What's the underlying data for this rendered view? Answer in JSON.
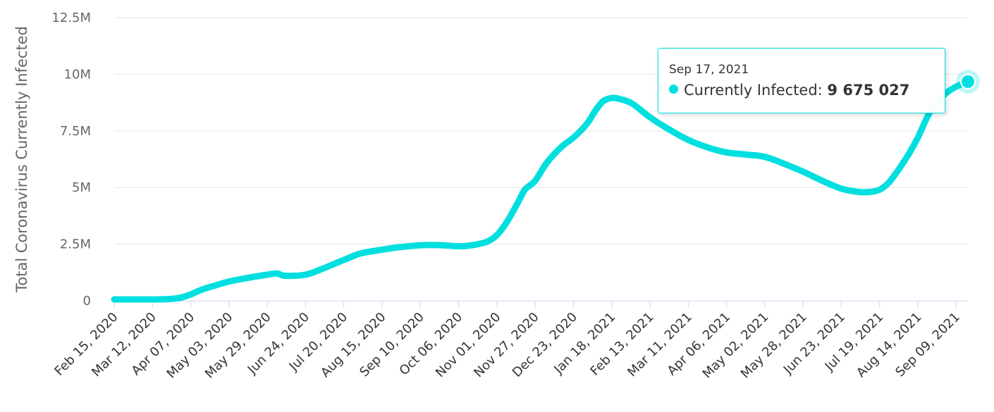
{
  "chart_data": {
    "type": "line",
    "ylabel": "Total Coronavirus Currently Infected",
    "y_ticks": [
      "0",
      "2.5M",
      "5M",
      "7.5M",
      "10M",
      "12.5M"
    ],
    "y_tick_values": [
      0,
      2500000,
      5000000,
      7500000,
      10000000,
      12500000
    ],
    "ylim": [
      0,
      12500000
    ],
    "x_tick_labels": [
      "Feb 15, 2020",
      "Mar 12, 2020",
      "Apr 07, 2020",
      "May 03, 2020",
      "May 29, 2020",
      "Jun 24, 2020",
      "Jul 20, 2020",
      "Aug 15, 2020",
      "Sep 10, 2020",
      "Oct 06, 2020",
      "Nov 01, 2020",
      "Nov 27, 2020",
      "Dec 23, 2020",
      "Jan 18, 2021",
      "Feb 13, 2021",
      "Mar 11, 2021",
      "Apr 06, 2021",
      "May 02, 2021",
      "May 28, 2021",
      "Jun 23, 2021",
      "Jul 19, 2021",
      "Aug 14, 2021",
      "Sep 09, 2021"
    ],
    "x_range": [
      "Feb 15, 2020",
      "Sep 17, 2021"
    ],
    "grid": true,
    "series": [
      {
        "name": "Currently Infected",
        "color": "#00dfdf",
        "points": [
          [
            "2020-02-15",
            60000
          ],
          [
            "2020-03-01",
            60000
          ],
          [
            "2020-03-15",
            60000
          ],
          [
            "2020-03-25",
            80000
          ],
          [
            "2020-04-01",
            150000
          ],
          [
            "2020-04-07",
            280000
          ],
          [
            "2020-04-15",
            500000
          ],
          [
            "2020-04-25",
            700000
          ],
          [
            "2020-05-03",
            850000
          ],
          [
            "2020-05-15",
            1000000
          ],
          [
            "2020-05-29",
            1150000
          ],
          [
            "2020-06-05",
            1200000
          ],
          [
            "2020-06-10",
            1100000
          ],
          [
            "2020-06-24",
            1150000
          ],
          [
            "2020-07-05",
            1400000
          ],
          [
            "2020-07-20",
            1800000
          ],
          [
            "2020-08-01",
            2100000
          ],
          [
            "2020-08-15",
            2250000
          ],
          [
            "2020-08-25",
            2350000
          ],
          [
            "2020-09-10",
            2450000
          ],
          [
            "2020-09-25",
            2450000
          ],
          [
            "2020-10-06",
            2400000
          ],
          [
            "2020-10-15",
            2450000
          ],
          [
            "2020-10-25",
            2600000
          ],
          [
            "2020-11-01",
            2900000
          ],
          [
            "2020-11-08",
            3500000
          ],
          [
            "2020-11-15",
            4300000
          ],
          [
            "2020-11-20",
            4900000
          ],
          [
            "2020-11-27",
            5300000
          ],
          [
            "2020-12-05",
            6100000
          ],
          [
            "2020-12-15",
            6800000
          ],
          [
            "2020-12-23",
            7200000
          ],
          [
            "2021-01-01",
            7800000
          ],
          [
            "2021-01-07",
            8400000
          ],
          [
            "2021-01-12",
            8800000
          ],
          [
            "2021-01-18",
            8950000
          ],
          [
            "2021-01-24",
            8900000
          ],
          [
            "2021-02-01",
            8700000
          ],
          [
            "2021-02-13",
            8100000
          ],
          [
            "2021-02-25",
            7600000
          ],
          [
            "2021-03-11",
            7100000
          ],
          [
            "2021-03-25",
            6750000
          ],
          [
            "2021-04-06",
            6550000
          ],
          [
            "2021-04-20",
            6450000
          ],
          [
            "2021-05-02",
            6350000
          ],
          [
            "2021-05-15",
            6050000
          ],
          [
            "2021-05-28",
            5700000
          ],
          [
            "2021-06-10",
            5300000
          ],
          [
            "2021-06-23",
            4950000
          ],
          [
            "2021-07-05",
            4800000
          ],
          [
            "2021-07-12",
            4800000
          ],
          [
            "2021-07-19",
            4900000
          ],
          [
            "2021-07-25",
            5200000
          ],
          [
            "2021-08-01",
            5800000
          ],
          [
            "2021-08-08",
            6500000
          ],
          [
            "2021-08-14",
            7200000
          ],
          [
            "2021-08-22",
            8300000
          ],
          [
            "2021-09-01",
            9100000
          ],
          [
            "2021-09-09",
            9450000
          ],
          [
            "2021-09-17",
            9675027
          ]
        ]
      }
    ],
    "tooltip": {
      "date": "Sep 17, 2021",
      "series_label": "Currently Infected",
      "separator": ":",
      "value": "9 675 027"
    }
  }
}
